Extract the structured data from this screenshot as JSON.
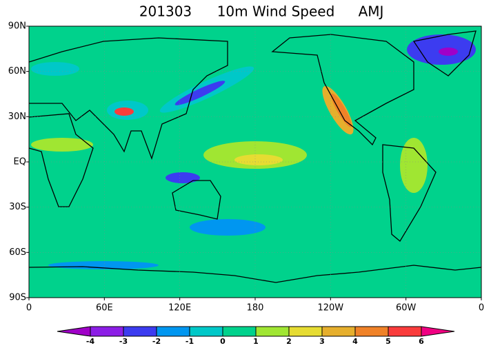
{
  "chart_data": {
    "type": "contour-map",
    "title": [
      "201303",
      "10m Wind Speed",
      "AMJ"
    ],
    "xlim": [
      0,
      360
    ],
    "xticks": [
      0,
      {
        "value": 60,
        "label": "60E"
      },
      {
        "value": 120,
        "label": "120E"
      },
      180,
      {
        "value": 240,
        "label": "120W"
      },
      {
        "value": 300,
        "label": "60W"
      },
      {
        "value": 360,
        "label": "0"
      }
    ],
    "ylim": [
      -90,
      90
    ],
    "yticks": [
      {
        "value": -90,
        "label": "90S"
      },
      {
        "value": -60,
        "label": "60S"
      },
      {
        "value": -30,
        "label": "30S"
      },
      {
        "value": 0,
        "label": "EQ"
      },
      {
        "value": 30,
        "label": "30N"
      },
      {
        "value": 60,
        "label": "60N"
      },
      {
        "value": 90,
        "label": "90N"
      }
    ],
    "grid": true,
    "colorbar": {
      "levels": [
        -4,
        -3,
        -2,
        -1,
        0,
        1,
        2,
        3,
        4,
        5,
        6
      ],
      "colors": [
        "#a000c8",
        "#8c1ee6",
        "#3c3cf0",
        "#0096f0",
        "#00c8c8",
        "#00d28c",
        "#a0e632",
        "#e6dc32",
        "#e6af2d",
        "#f08228",
        "#fa3c3c",
        "#f00082"
      ]
    }
  }
}
